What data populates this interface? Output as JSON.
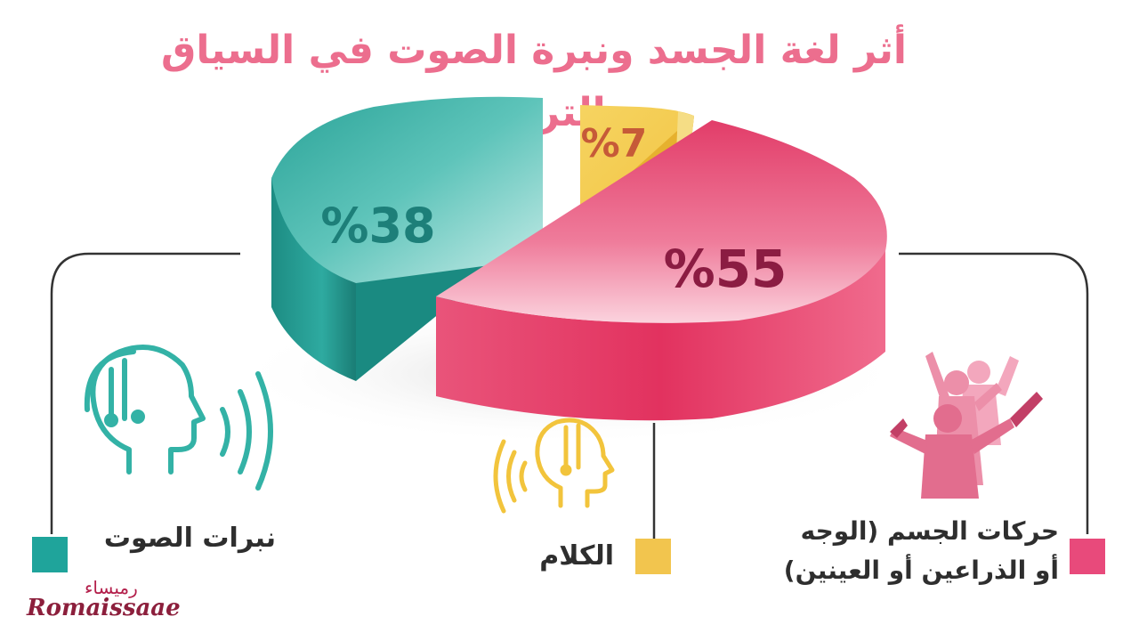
{
  "title": "أثر لغة الجسد ونبرة الصوت في السياق التربوي",
  "chart_data": {
    "type": "pie",
    "title": "أثر لغة الجسد ونبرة الصوت في السياق التربوي",
    "slices": [
      {
        "name": "حركات الجسم (الوجه أو الذراعين أو العينين)",
        "value": 55,
        "label": "%55",
        "color": "#e6436d",
        "side": "#d42d5a",
        "label_color": "#8b1c42"
      },
      {
        "name": "نبرات الصوت",
        "value": 38,
        "label": "%38",
        "color": "#33b2a6",
        "side": "#1e8f86",
        "label_color": "#1d7f79"
      },
      {
        "name": "الكلام",
        "value": 7,
        "label": "%7",
        "color": "#f2cd55",
        "side": "#e0b22e",
        "label_color": "#c65a38"
      }
    ],
    "legend": [
      {
        "text": "نبرات الصوت",
        "color": "#1fa49b"
      },
      {
        "text": "الكلام",
        "color": "#f2c54e"
      },
      {
        "text": "حركات الجسم (الوجه أو الذراعين أو العينين)",
        "color": "#e84a7b"
      }
    ],
    "legend_placement": "bottom"
  },
  "legend_text": {
    "voice": "نبرات الصوت",
    "speech": "الكلام",
    "body": "حركات الجسم (الوجه\nأو الذراعين أو العينين)"
  },
  "icons": [
    "headset-head-icon-teal",
    "headset-head-icon-yellow",
    "cheering-people-icon"
  ],
  "logo": {
    "latin": "Romaissaae",
    "arabic": "رميساء"
  },
  "colors": {
    "title": "#ec6e8e",
    "line": "#333333"
  }
}
